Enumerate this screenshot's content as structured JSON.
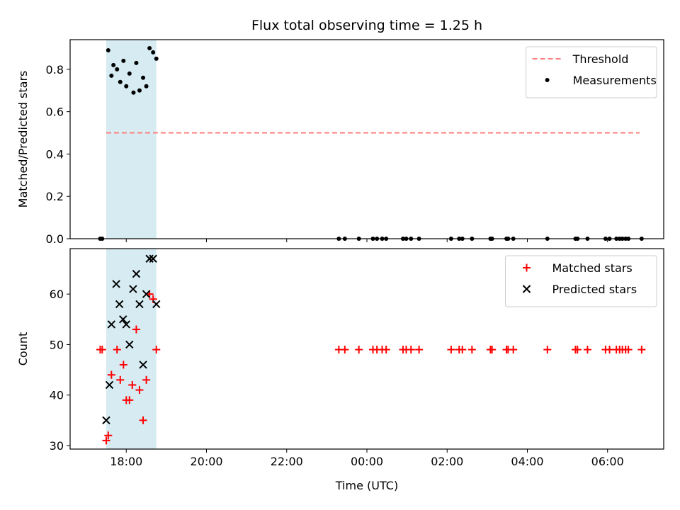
{
  "chart_data": {
    "title": "Flux total observing time = 1.25 h",
    "type": "scatter",
    "x_axis": {
      "label": "Time (UTC)",
      "unit": "hours since 00:00 UTC of first night (times after midnight > 24)",
      "xlim": [
        16.6,
        31.4
      ],
      "tick_values": [
        18,
        20,
        22,
        24,
        26,
        28,
        30
      ],
      "tick_labels": [
        "18:00",
        "20:00",
        "22:00",
        "00:00",
        "02:00",
        "04:00",
        "06:00"
      ]
    },
    "observing_window": {
      "start": 17.5,
      "end": 18.75,
      "color": "#add8e6"
    },
    "panels": [
      {
        "ylabel": "Matched/Predicted stars",
        "ylim": [
          0,
          0.94
        ],
        "yticks": [
          0.0,
          0.2,
          0.4,
          0.6,
          0.8
        ],
        "ytick_labels": [
          "0.0",
          "0.2",
          "0.4",
          "0.6",
          "0.8"
        ],
        "legend_position": "top-right",
        "threshold": {
          "name": "Threshold",
          "y": 0.5,
          "x_start": 17.5,
          "x_end": 30.8,
          "color": "#ff7f7f",
          "style": "dashed"
        },
        "series": [
          {
            "name": "Measurements",
            "marker": "dot",
            "color": "#000000",
            "x": [
              17.35,
              17.4,
              17.55,
              17.63,
              17.68,
              17.77,
              17.85,
              17.93,
              18.0,
              18.08,
              18.18,
              18.25,
              18.33,
              18.42,
              18.5,
              18.58,
              18.67,
              18.75,
              23.3,
              23.45,
              23.8,
              24.15,
              24.25,
              24.38,
              24.48,
              24.9,
              24.98,
              25.1,
              25.3,
              26.1,
              26.3,
              26.38,
              26.62,
              27.08,
              27.12,
              27.48,
              27.52,
              27.65,
              28.5,
              29.2,
              29.25,
              29.5,
              29.95,
              30.05,
              30.22,
              30.3,
              30.37,
              30.45,
              30.52,
              30.85
            ],
            "y": [
              0,
              0,
              0.89,
              0.77,
              0.82,
              0.8,
              0.74,
              0.84,
              0.72,
              0.78,
              0.69,
              0.83,
              0.7,
              0.76,
              0.72,
              0.9,
              0.88,
              0.85,
              0,
              0,
              0,
              0,
              0,
              0,
              0,
              0,
              0,
              0,
              0,
              0,
              0,
              0,
              0,
              0,
              0,
              0,
              0,
              0,
              0,
              0,
              0,
              0,
              0,
              0,
              0,
              0,
              0,
              0,
              0,
              0
            ]
          }
        ]
      },
      {
        "ylabel": "Count",
        "ylim": [
          29.3,
          69
        ],
        "yticks": [
          30,
          40,
          50,
          60
        ],
        "ytick_labels": [
          "30",
          "40",
          "50",
          "60"
        ],
        "legend_position": "top-right",
        "series": [
          {
            "name": "Matched stars",
            "marker": "plus",
            "color": "#ff0000",
            "x": [
              17.35,
              17.4,
              17.5,
              17.55,
              17.63,
              17.77,
              17.85,
              17.93,
              18.0,
              18.08,
              18.15,
              18.25,
              18.33,
              18.42,
              18.5,
              18.58,
              18.67,
              18.75,
              23.3,
              23.45,
              23.8,
              24.15,
              24.25,
              24.38,
              24.48,
              24.9,
              24.98,
              25.1,
              25.3,
              26.1,
              26.3,
              26.38,
              26.62,
              27.08,
              27.12,
              27.48,
              27.52,
              27.65,
              28.5,
              29.2,
              29.25,
              29.5,
              29.95,
              30.05,
              30.22,
              30.3,
              30.37,
              30.45,
              30.52,
              30.85
            ],
            "y": [
              49,
              49,
              31,
              32,
              44,
              49,
              43,
              46,
              39,
              39,
              42,
              53,
              41,
              35,
              43,
              60,
              59,
              49,
              49,
              49,
              49,
              49,
              49,
              49,
              49,
              49,
              49,
              49,
              49,
              49,
              49,
              49,
              49,
              49,
              49,
              49,
              49,
              49,
              49,
              49,
              49,
              49,
              49,
              49,
              49,
              49,
              49,
              49,
              49,
              49
            ]
          },
          {
            "name": "Predicted stars",
            "marker": "x",
            "color": "#000000",
            "x": [
              17.5,
              17.58,
              17.63,
              17.75,
              17.83,
              17.92,
              18.0,
              18.08,
              18.17,
              18.25,
              18.33,
              18.42,
              18.5,
              18.58,
              18.67,
              18.75
            ],
            "y": [
              35,
              42,
              54,
              62,
              58,
              55,
              54,
              50,
              61,
              64,
              58,
              46,
              60,
              67,
              67,
              58
            ]
          }
        ]
      }
    ]
  }
}
